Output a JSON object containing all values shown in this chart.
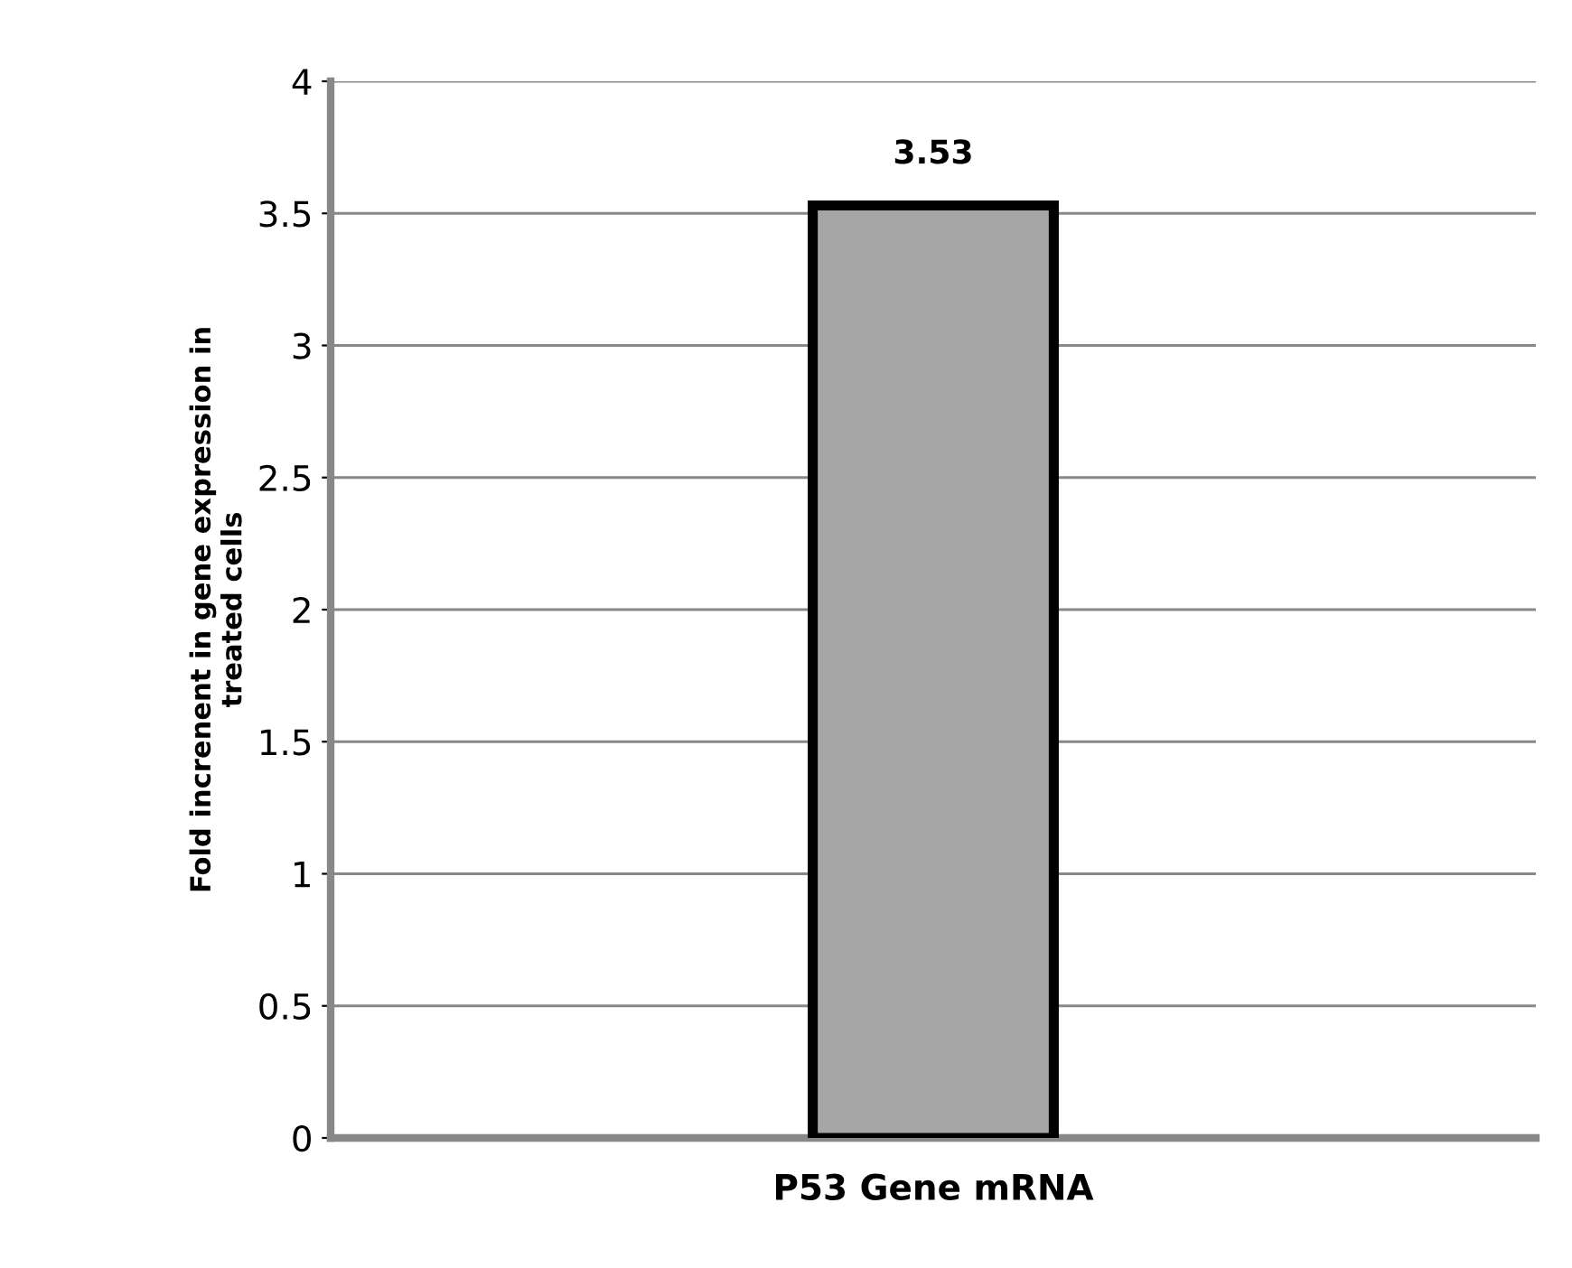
{
  "chart_data": {
    "type": "bar",
    "ylabel": "Fold increnent in gene expression in\ntreated cells",
    "categories": [
      "P53 Gene mRNA"
    ],
    "values": [
      3.53
    ],
    "color": "#a6a6a6",
    "data_labels": true,
    "ylim": [
      0,
      4
    ],
    "yticks": [
      0,
      0.5,
      1,
      1.5,
      2,
      2.5,
      3,
      3.5,
      4
    ],
    "grid": "y"
  }
}
